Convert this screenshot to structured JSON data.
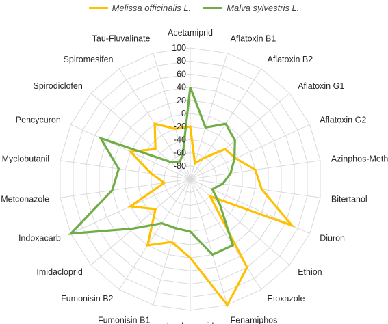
{
  "chart_data": {
    "type": "radar",
    "categories": [
      "Acetamiprid",
      "Aflatoxin B1",
      "Aflatoxin B2",
      "Aflatoxin G1",
      "Aflatoxin G2",
      "Azinphos-Methyl",
      "Bitertanol",
      "Diuron",
      "Ethion",
      "Etoxazole",
      "Fenamiphos",
      "Fenhexamid",
      "Fumonisin B1",
      "Fumonisin B2",
      "Imidacloprid",
      "Indoxacarb",
      "Metconazole",
      "Myclobutanil",
      "Pencycuron",
      "Spirodiclofen",
      "Spiromesifen",
      "Tau-Fluvalinate"
    ],
    "rlim": [
      -100,
      100
    ],
    "ticks": [
      100,
      80,
      60,
      40,
      20,
      0,
      -20,
      -40,
      -60,
      -80
    ],
    "tick_labels": [
      "100",
      "80",
      "60",
      "40",
      "20",
      "0",
      "-20",
      "-40",
      "-60",
      "-80"
    ],
    "series": [
      {
        "name": "Melissa officinalis L.",
        "color": "#FFC000",
        "values": [
          -20,
          -75,
          -62,
          -30,
          -24,
          0,
          10,
          70,
          -60,
          60,
          100,
          20,
          0,
          20,
          -30,
          0,
          -60,
          -40,
          0,
          -30,
          0,
          -20
        ]
      },
      {
        "name": "Malva sylvestris L.",
        "color": "#70AD47",
        "values": [
          40,
          -18,
          0,
          -10,
          -26,
          -38,
          -50,
          -63,
          -40,
          20,
          20,
          -20,
          -22,
          -20,
          15,
          100,
          20,
          10,
          50,
          -60,
          -70,
          -60
        ]
      }
    ],
    "legend_position": "top",
    "grid": true
  }
}
